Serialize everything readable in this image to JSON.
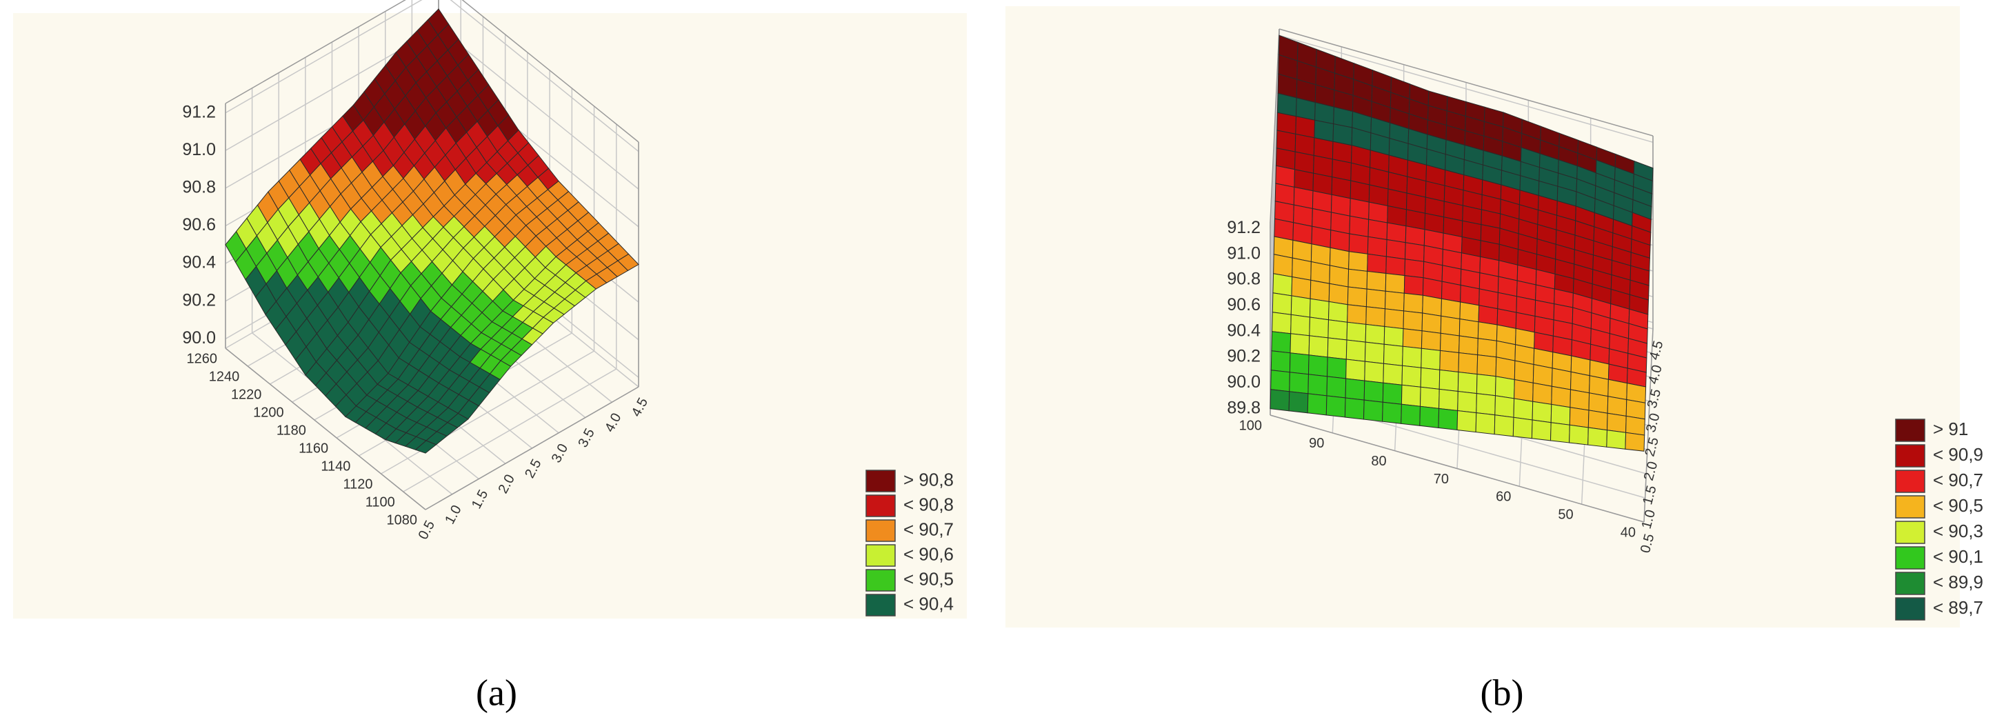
{
  "chart_data": [
    {
      "type": "surface",
      "caption": "(a)",
      "x": [
        0.5,
        1.3,
        2.1,
        2.9,
        3.7,
        4.5
      ],
      "y": [
        1080,
        1116,
        1152,
        1188,
        1224,
        1260
      ],
      "z": [
        [
          90.25,
          90.3,
          90.45,
          90.55,
          90.6,
          90.6
        ],
        [
          90.15,
          90.25,
          90.4,
          90.5,
          90.6,
          90.65
        ],
        [
          90.1,
          90.2,
          90.4,
          90.55,
          90.65,
          90.7
        ],
        [
          90.15,
          90.3,
          90.5,
          90.6,
          90.7,
          90.8
        ],
        [
          90.3,
          90.45,
          90.6,
          90.7,
          90.85,
          90.95
        ],
        [
          90.5,
          90.65,
          90.75,
          90.85,
          91.0,
          91.1
        ]
      ],
      "xlim": [
        0.5,
        4.5
      ],
      "xticks": [
        0.5,
        {
          "value": 1,
          "label": "1.0"
        },
        1.5,
        {
          "value": 2,
          "label": "2.0"
        },
        2.5,
        {
          "value": 3,
          "label": "3.0"
        },
        3.5,
        {
          "value": 4,
          "label": "4.0"
        },
        4.5
      ],
      "ylim": [
        1080,
        1260
      ],
      "yticks": [
        1080,
        1100,
        1120,
        1140,
        1160,
        1180,
        1200,
        1220,
        1240,
        1260
      ],
      "zlim": [
        89.95,
        91.25
      ],
      "zticks": [
        {
          "value": 90,
          "label": "90.0"
        },
        90.2,
        90.4,
        90.6,
        90.8,
        {
          "value": 91,
          "label": "91.0"
        },
        91.2
      ],
      "levels": [
        {
          "label": "> 90,8",
          "value": 90.8,
          "color": "#7a0a0a"
        },
        {
          "label": "< 90,8",
          "value": 90.8,
          "color": "#c81414"
        },
        {
          "label": "< 90,7",
          "value": 90.7,
          "color": "#f08c1e"
        },
        {
          "label": "< 90,6",
          "value": 90.6,
          "color": "#c8f032"
        },
        {
          "label": "< 90,5",
          "value": 90.5,
          "color": "#3cc81e"
        },
        {
          "label": "< 90,4",
          "value": 90.4,
          "color": "#146446"
        }
      ]
    },
    {
      "type": "surface",
      "caption": "(b)",
      "x": [
        0.5,
        1.3,
        2.1,
        2.9,
        3.7,
        4.5
      ],
      "y": [
        40,
        52,
        64,
        76,
        88,
        100
      ],
      "z": [
        [
          90.3,
          90.5,
          90.65,
          90.8,
          90.9,
          91.0
        ],
        [
          90.2,
          90.45,
          90.65,
          90.8,
          90.95,
          91.05
        ],
        [
          90.1,
          90.4,
          90.6,
          90.8,
          90.95,
          91.1
        ],
        [
          90.0,
          90.3,
          90.55,
          90.75,
          90.95,
          91.1
        ],
        [
          89.9,
          90.2,
          90.45,
          90.7,
          90.95,
          91.15
        ],
        [
          89.8,
          90.1,
          90.4,
          90.65,
          90.9,
          91.2
        ]
      ],
      "xlim": [
        0.5,
        4.5
      ],
      "xticks": [
        0.5,
        {
          "value": 1,
          "label": "1.0"
        },
        1.5,
        {
          "value": 2,
          "label": "2.0"
        },
        2.5,
        {
          "value": 3,
          "label": "3.0"
        },
        3.5,
        {
          "value": 4,
          "label": "4.0"
        },
        4.5
      ],
      "ylim": [
        40,
        100
      ],
      "yticks": [
        40,
        50,
        60,
        70,
        80,
        90,
        100
      ],
      "zlim": [
        89.75,
        91.25
      ],
      "zticks": [
        89.8,
        {
          "value": 90,
          "label": "90.0"
        },
        90.2,
        90.4,
        90.6,
        90.8,
        {
          "value": 91,
          "label": "91.0"
        },
        91.2
      ],
      "levels": [
        {
          "label": "> 91",
          "value": 91,
          "color": "#6e0a0a"
        },
        {
          "label": "< 90,9",
          "value": 90.9,
          "color": "#b40a0a"
        },
        {
          "label": "< 90,7",
          "value": 90.7,
          "color": "#e61e1e"
        },
        {
          "label": "< 90,5",
          "value": 90.5,
          "color": "#f5b41e"
        },
        {
          "label": "< 90,3",
          "value": 90.3,
          "color": "#d2f032"
        },
        {
          "label": "< 90,1",
          "value": 90.1,
          "color": "#32c81e"
        },
        {
          "label": "< 89,9",
          "value": 89.9,
          "color": "#1e8c32"
        },
        {
          "label": "< 89,7",
          "value": 89.7,
          "color": "#145a46"
        }
      ]
    }
  ]
}
